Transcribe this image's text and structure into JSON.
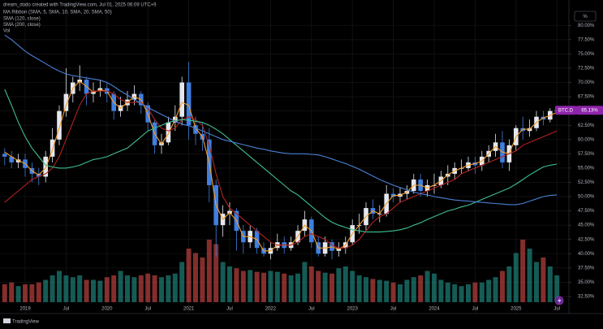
{
  "header": "dream_dodo created with TradingView.com, Jul 01, 2025 06:09 UTC+9",
  "footer": "TradingView",
  "chart_data": {
    "type": "candlestick",
    "axis_unit_label": "%",
    "symbol": "BTC.D",
    "last_price_label": "65.13%",
    "categories": [
      null,
      null,
      null,
      "2019",
      null,
      null,
      null,
      null,
      null,
      "Jul",
      null,
      null,
      null,
      null,
      null,
      "2020",
      null,
      null,
      null,
      null,
      null,
      "Jul",
      null,
      null,
      null,
      null,
      null,
      "2021",
      null,
      null,
      null,
      null,
      null,
      "Jul",
      null,
      null,
      null,
      null,
      null,
      "2022",
      null,
      null,
      null,
      null,
      null,
      "Jul",
      null,
      null,
      null,
      null,
      null,
      "2023",
      null,
      null,
      null,
      null,
      null,
      "Jul",
      null,
      null,
      null,
      null,
      null,
      "2024",
      null,
      null,
      null,
      null,
      null,
      "Jul",
      null,
      null,
      null,
      null,
      null,
      "2025",
      null,
      null,
      null,
      null,
      null,
      "Jul"
    ],
    "open": [
      57.5,
      57,
      56,
      56.5,
      55,
      54,
      53.5,
      57,
      60,
      65,
      68,
      70,
      70.5,
      68,
      68.5,
      69,
      68,
      65,
      66,
      67,
      68,
      66,
      63,
      59,
      59.5,
      63,
      64,
      70,
      62.5,
      61,
      60,
      52,
      45,
      47,
      47.5,
      44,
      42,
      44,
      41,
      40,
      41,
      42,
      41,
      42,
      44,
      46,
      42,
      40,
      42,
      40.5,
      41,
      42,
      45,
      45,
      48,
      47,
      47,
      50.5,
      50,
      50.5,
      51,
      53,
      51,
      52,
      52,
      53.5,
      54,
      55,
      55,
      56,
      55.5,
      57,
      58,
      59.5,
      56,
      59,
      62,
      61.5,
      62,
      64,
      63.5,
      65
    ],
    "high": [
      58.5,
      58,
      57.5,
      57.5,
      56,
      55,
      58,
      62,
      66,
      72.5,
      71,
      73,
      71,
      70,
      70.5,
      70,
      68.5,
      67.5,
      68.5,
      69.5,
      68.5,
      66.5,
      63.5,
      61,
      64,
      66,
      71,
      73.6,
      64,
      63,
      62,
      53,
      48.5,
      49,
      48,
      45,
      45,
      44.5,
      42,
      42,
      43.5,
      43,
      43,
      45,
      47.5,
      46.5,
      43,
      43,
      42.5,
      42,
      43,
      46,
      47,
      49,
      49.5,
      48.5,
      52,
      51.5,
      51.5,
      52,
      54,
      54,
      53,
      54,
      54.5,
      55.5,
      56,
      56.5,
      57,
      57,
      58,
      59,
      61,
      61.5,
      60,
      62.5,
      64,
      63.5,
      65,
      65,
      65.5,
      65.3
    ],
    "low": [
      55.5,
      55,
      55,
      53.5,
      52.5,
      52,
      52.5,
      56,
      59,
      64,
      66.5,
      68.5,
      66,
      66.5,
      67.5,
      66.5,
      63.5,
      64,
      65,
      66,
      64.5,
      61.5,
      57.5,
      57.5,
      59,
      61.5,
      62.5,
      60,
      59,
      58,
      49,
      39.5,
      43,
      45,
      40.5,
      40,
      41,
      40,
      39.5,
      39,
      40.5,
      40,
      40.5,
      41.5,
      43,
      41,
      39.5,
      39.5,
      39,
      39.5,
      40,
      41.5,
      43.5,
      44,
      46,
      45.5,
      46.5,
      49,
      49,
      49.5,
      50.5,
      50,
      50,
      50.5,
      51.5,
      52,
      53,
      54,
      54.5,
      54,
      54.5,
      56,
      57,
      55,
      54.5,
      58,
      60,
      60.5,
      61.5,
      62.5,
      63,
      64.9
    ],
    "close": [
      57,
      56,
      56.5,
      55,
      54,
      53.5,
      57,
      60,
      65,
      68,
      70,
      70.5,
      68,
      68.5,
      69,
      68,
      65,
      66,
      67,
      68,
      66,
      63,
      59,
      59.5,
      63,
      64,
      70,
      62.5,
      61,
      60,
      52,
      45,
      47,
      47.5,
      44,
      42,
      44,
      41,
      40,
      41,
      42,
      41,
      42,
      44,
      46,
      42,
      40,
      42,
      40.5,
      41,
      42,
      45,
      45,
      48,
      47,
      47,
      50.5,
      50,
      50.5,
      51,
      53,
      51,
      52,
      52,
      53.5,
      54,
      55,
      55,
      56,
      55.5,
      57,
      58,
      59.5,
      56,
      59,
      62,
      61.5,
      62,
      64,
      63.5,
      65,
      65.13
    ],
    "up_color": "#e4e7ee",
    "down_color": "#3f7fe0",
    "volume": {
      "name": "Vol",
      "up_color": "#26a69a",
      "down_color": "#ef5350",
      "values": [
        20,
        22,
        18,
        20,
        20,
        22,
        25,
        30,
        35,
        30,
        28,
        30,
        25,
        25,
        24,
        28,
        30,
        35,
        30,
        28,
        30,
        32,
        30,
        28,
        30,
        32,
        45,
        60,
        55,
        50,
        70,
        65,
        45,
        40,
        38,
        35,
        36,
        34,
        33,
        35,
        34,
        32,
        30,
        32,
        45,
        40,
        35,
        33,
        32,
        38,
        40,
        35,
        30,
        28,
        26,
        25,
        24,
        22,
        20,
        25,
        28,
        30,
        35,
        32,
        25,
        22,
        20,
        18,
        20,
        22,
        22,
        25,
        28,
        35,
        40,
        55,
        70,
        60,
        45,
        50,
        40,
        30
      ]
    },
    "indicators": [
      {
        "name": "MA Ribbon (SMA, 5, SMA, 10, SMA, 20, SMA, 50)",
        "lines": [
          {
            "color": "#f59c2a",
            "values": [
              57.8,
              57,
              56.3,
              55.8,
              54.5,
              53.8,
              55,
              58.2,
              62,
              66,
              69,
              70.2,
              69.3,
              68.3,
              68.7,
              68.5,
              66.5,
              65.5,
              66.5,
              67.5,
              67,
              64.5,
              61,
              59.2,
              61,
              63.5,
              66.5,
              66,
              62,
              60.5,
              56,
              48.5,
              46,
              47.2,
              45.8,
              43,
              43,
              42.5,
              40.5,
              40.5,
              41.5,
              41.5,
              41.5,
              43,
              45,
              44,
              41,
              41,
              41.2,
              40.8,
              41.5,
              43.5,
              45,
              46.5,
              47.5,
              47,
              48.8,
              50.2,
              50.2,
              50.8,
              52,
              52,
              51.5,
              52,
              52.8,
              53.8,
              54.5,
              55,
              55.5,
              55.8,
              56.2,
              57.5,
              58.8,
              57.8,
              57.5,
              60.5,
              61.8,
              61.8,
              63,
              63.8,
              64.2,
              64.8
            ]
          },
          {
            "color": "#b22222",
            "values": [
              49,
              50,
              51,
              52,
              53,
              53.5,
              54,
              55,
              57,
              60,
              63,
              66,
              68,
              68.5,
              68.5,
              68.5,
              68,
              67,
              66.5,
              66.5,
              66.5,
              65.5,
              63.5,
              62,
              61.5,
              62,
              63.5,
              64,
              63.5,
              62.5,
              59,
              54,
              50,
              48,
              47,
              46,
              45,
              44,
              43,
              42,
              41.5,
              41.5,
              41.5,
              42,
              43,
              43.5,
              43,
              42.5,
              41.5,
              41,
              41,
              41.5,
              42.5,
              44,
              45.5,
              46.5,
              47,
              48,
              49,
              49.5,
              50,
              50.5,
              51,
              51.5,
              52,
              52.5,
              53,
              54,
              54.5,
              55,
              55.5,
              56,
              56.5,
              57,
              57.5,
              58,
              59,
              59.5,
              60,
              60.5,
              61,
              61.5
            ]
          }
        ]
      },
      {
        "name": "SMA (120, close)",
        "lines": [
          {
            "color": "#3fbf8f",
            "values": [
              68.8,
              66,
              63,
              60.5,
              58.5,
              57,
              55.5,
              55.2,
              55,
              55,
              55.2,
              55.5,
              56,
              56.5,
              56.7,
              57,
              57.5,
              58,
              58.5,
              59.5,
              60.5,
              61.5,
              62,
              62.5,
              63,
              63.3,
              63.5,
              63.4,
              63.2,
              63,
              62.5,
              61.8,
              61,
              60,
              59,
              58,
              57,
              56,
              55,
              54,
              53,
              52,
              51,
              50.3,
              49.3,
              48.3,
              47.3,
              46.3,
              45.5,
              45,
              44.6,
              44.2,
              44,
              43.8,
              43.8,
              43.8,
              43.9,
              44,
              44.2,
              44.5,
              45,
              45.4,
              46,
              46.5,
              47,
              47.5,
              47.8,
              48.2,
              48.5,
              49,
              49.5,
              50,
              50.5,
              51,
              51.5,
              52.2,
              53,
              53.8,
              54.5,
              55.2,
              55.5,
              55.7
            ]
          }
        ]
      },
      {
        "name": "SMA (200, close)",
        "lines": [
          {
            "color": "#4a7fd4",
            "values": [
              78.3,
              77.5,
              76.5,
              75.5,
              74.7,
              74,
              73.3,
              72.6,
              72,
              71.5,
              71.2,
              71,
              70.8,
              70.6,
              70.4,
              70,
              69.3,
              68.5,
              67.8,
              67,
              66.3,
              65.6,
              65,
              64.4,
              63.8,
              63.2,
              62.7,
              62.4,
              62,
              61.5,
              61,
              60.5,
              60,
              59.7,
              59.4,
              59.1,
              58.8,
              58.5,
              58.3,
              58,
              57.8,
              57.6,
              57.5,
              57.5,
              57.5,
              57.4,
              57.3,
              57,
              56.6,
              56.2,
              55.8,
              55.3,
              54.8,
              54.2,
              53.6,
              53,
              52.5,
              52,
              51.6,
              51.2,
              50.8,
              50.5,
              50.3,
              50,
              49.8,
              49.6,
              49.4,
              49.3,
              49.2,
              49.1,
              49,
              48.9,
              48.8,
              48.7,
              48.6,
              48.6,
              48.8,
              49.2,
              49.6,
              50,
              50.2,
              50.3
            ]
          }
        ]
      }
    ],
    "ylim": [
      31.5,
      82.6
    ],
    "yticks": [
      {
        "value": 32.5,
        "label": "32.50%"
      },
      {
        "value": 35,
        "label": "35.00%"
      },
      {
        "value": 37.5,
        "label": "37.50%"
      },
      {
        "value": 40,
        "label": "40.00%"
      },
      {
        "value": 42.5,
        "label": "42.50%"
      },
      {
        "value": 45,
        "label": "45.00%"
      },
      {
        "value": 47.5,
        "label": "47.50%"
      },
      {
        "value": 50,
        "label": "50.00%"
      },
      {
        "value": 52.5,
        "label": "52.50%"
      },
      {
        "value": 55,
        "label": "55.00%"
      },
      {
        "value": 57.5,
        "label": "57.50%"
      },
      {
        "value": 60,
        "label": "60.00%"
      },
      {
        "value": 62.5,
        "label": "62.50%"
      },
      {
        "value": 65,
        "label": "65.00%"
      },
      {
        "value": 67.5,
        "label": "67.50%"
      },
      {
        "value": 70,
        "label": "70.00%"
      },
      {
        "value": 72.5,
        "label": "72.50%"
      },
      {
        "value": 75,
        "label": "75.00%"
      },
      {
        "value": 77.5,
        "label": "77.50%"
      },
      {
        "value": 80,
        "label": "80.00%"
      }
    ],
    "grid": true
  }
}
